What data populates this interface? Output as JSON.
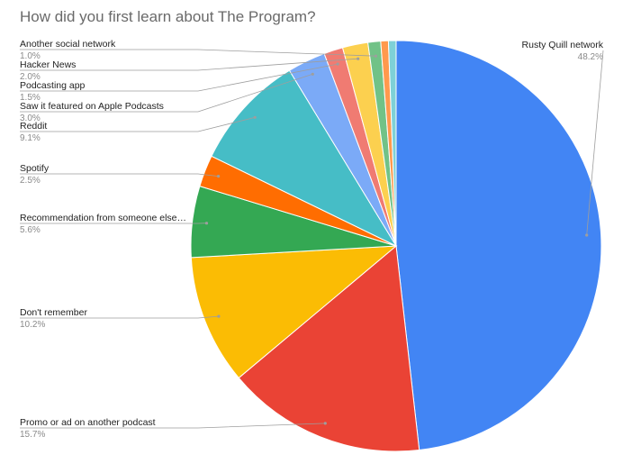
{
  "chart_data": {
    "type": "pie",
    "title": "How did you first learn about The Program?",
    "slices": [
      {
        "label": "Rusty Quill network",
        "value": 48.2,
        "value_label": "48.2%",
        "color": "#4285f4"
      },
      {
        "label": "Promo or ad on another podcast",
        "value": 15.7,
        "value_label": "15.7%",
        "color": "#ea4335"
      },
      {
        "label": "Don't remember",
        "value": 10.2,
        "value_label": "10.2%",
        "color": "#fbbc04"
      },
      {
        "label": "Recommendation from someone else…",
        "value": 5.6,
        "value_label": "5.6%",
        "color": "#34a853"
      },
      {
        "label": "Spotify",
        "value": 2.5,
        "value_label": "2.5%",
        "color": "#ff6d01"
      },
      {
        "label": "Reddit",
        "value": 9.1,
        "value_label": "9.1%",
        "color": "#46bdc6"
      },
      {
        "label": "Saw it featured on Apple Podcasts",
        "value": 3.0,
        "value_label": "3.0%",
        "color": "#7baaf7"
      },
      {
        "label": "Podcasting app",
        "value": 1.5,
        "value_label": "1.5%",
        "color": "#f07b72"
      },
      {
        "label": "Hacker News",
        "value": 2.0,
        "value_label": "2.0%",
        "color": "#fcd04f"
      },
      {
        "label": "Another social network",
        "value": 1.0,
        "value_label": "1.0%",
        "color": "#71c287"
      },
      {
        "label": "",
        "value": 0.6,
        "value_label": "",
        "color": "#ff994d"
      },
      {
        "label": "",
        "value": 0.6,
        "value_label": "",
        "color": "#7ed1d7"
      }
    ],
    "start_angle_deg": 0,
    "direction": "clockwise",
    "legend": "none"
  }
}
